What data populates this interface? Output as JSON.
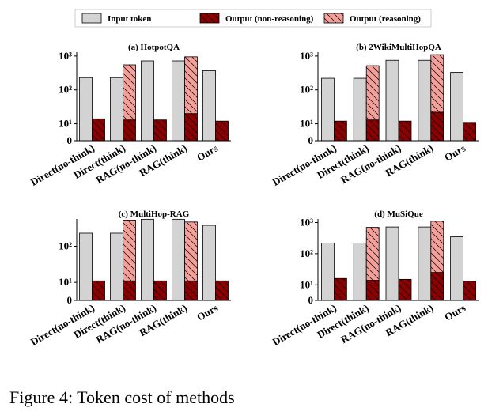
{
  "chart_data": [
    {
      "type": "bar",
      "title": "(a) HotpotQA",
      "yscale": "symlog",
      "linthresh": 10,
      "linscale": 0.5,
      "categories": [
        "Direct(no-think)",
        "Direct(think)",
        "RAG(no-think)",
        "RAG(think)",
        "Ours"
      ],
      "series": [
        {
          "name": "Input token",
          "color": "#d3d3d3",
          "values": [
            230,
            230,
            720,
            720,
            370
          ]
        },
        {
          "name": "Output (non-reasoning)",
          "color": "#8b0000",
          "hatch": true,
          "values": [
            14,
            13,
            13,
            20,
            12
          ]
        },
        {
          "name": "Output (reasoning)",
          "color": "#f4a09a",
          "hatch": true,
          "values": [
            null,
            537,
            null,
            930,
            null
          ]
        }
      ],
      "ylim": [
        0,
        1300
      ],
      "yticks": [
        0,
        {
          "value": 10,
          "label": "10¹"
        },
        {
          "value": 100,
          "label": "10²"
        },
        {
          "value": 1000,
          "label": "10³"
        }
      ]
    },
    {
      "type": "bar",
      "title": "(b) 2WikiMultiHopQA",
      "yscale": "symlog",
      "linthresh": 10,
      "linscale": 0.5,
      "categories": [
        "Direct(no-think)",
        "Direct(think)",
        "RAG(no-think)",
        "RAG(think)",
        "Ours"
      ],
      "series": [
        {
          "name": "Input token",
          "color": "#d3d3d3",
          "values": [
            220,
            220,
            750,
            750,
            330
          ]
        },
        {
          "name": "Output (non-reasoning)",
          "color": "#8b0000",
          "hatch": true,
          "values": [
            12,
            13,
            12,
            22,
            11
          ]
        },
        {
          "name": "Output (reasoning)",
          "color": "#f4a09a",
          "hatch": true,
          "values": [
            null,
            507,
            null,
            1078,
            null
          ]
        }
      ],
      "ylim": [
        0,
        1300
      ],
      "yticks": [
        0,
        {
          "value": 10,
          "label": "10¹"
        },
        {
          "value": 100,
          "label": "10²"
        },
        {
          "value": 1000,
          "label": "10³"
        }
      ]
    },
    {
      "type": "bar",
      "title": "(c) MultiHop-RAG",
      "yscale": "symlog",
      "linthresh": 10,
      "linscale": 0.5,
      "categories": [
        "Direct(no-think)",
        "Direct(think)",
        "RAG(no-think)",
        "RAG(think)",
        "Ours"
      ],
      "series": [
        {
          "name": "Input token",
          "color": "#d3d3d3",
          "values": [
            230,
            230,
            560,
            560,
            380
          ]
        },
        {
          "name": "Output (non-reasoning)",
          "color": "#8b0000",
          "hatch": true,
          "values": [
            11,
            11,
            11,
            11,
            11
          ]
        },
        {
          "name": "Output (reasoning)",
          "color": "#f4a09a",
          "hatch": true,
          "values": [
            null,
            519,
            null,
            459,
            null
          ]
        }
      ],
      "ylim": [
        0,
        570
      ],
      "yticks": [
        0,
        {
          "value": 10,
          "label": "10¹"
        },
        {
          "value": 100,
          "label": "10²"
        }
      ]
    },
    {
      "type": "bar",
      "title": "(d) MuSiQue",
      "yscale": "symlog",
      "linthresh": 10,
      "linscale": 0.5,
      "categories": [
        "Direct(no-think)",
        "Direct(think)",
        "RAG(no-think)",
        "RAG(think)",
        "Ours"
      ],
      "series": [
        {
          "name": "Input token",
          "color": "#d3d3d3",
          "values": [
            220,
            220,
            720,
            720,
            350
          ]
        },
        {
          "name": "Output (non-reasoning)",
          "color": "#8b0000",
          "hatch": true,
          "values": [
            16,
            14,
            15,
            25,
            13
          ]
        },
        {
          "name": "Output (reasoning)",
          "color": "#f4a09a",
          "hatch": true,
          "values": [
            null,
            686,
            null,
            1075,
            null
          ]
        }
      ],
      "ylim": [
        0,
        1300
      ],
      "yticks": [
        0,
        {
          "value": 10,
          "label": "10¹"
        },
        {
          "value": 100,
          "label": "10²"
        },
        {
          "value": 1000,
          "label": "10³"
        }
      ]
    }
  ],
  "caption": "Figure 4: Token cost of methods"
}
